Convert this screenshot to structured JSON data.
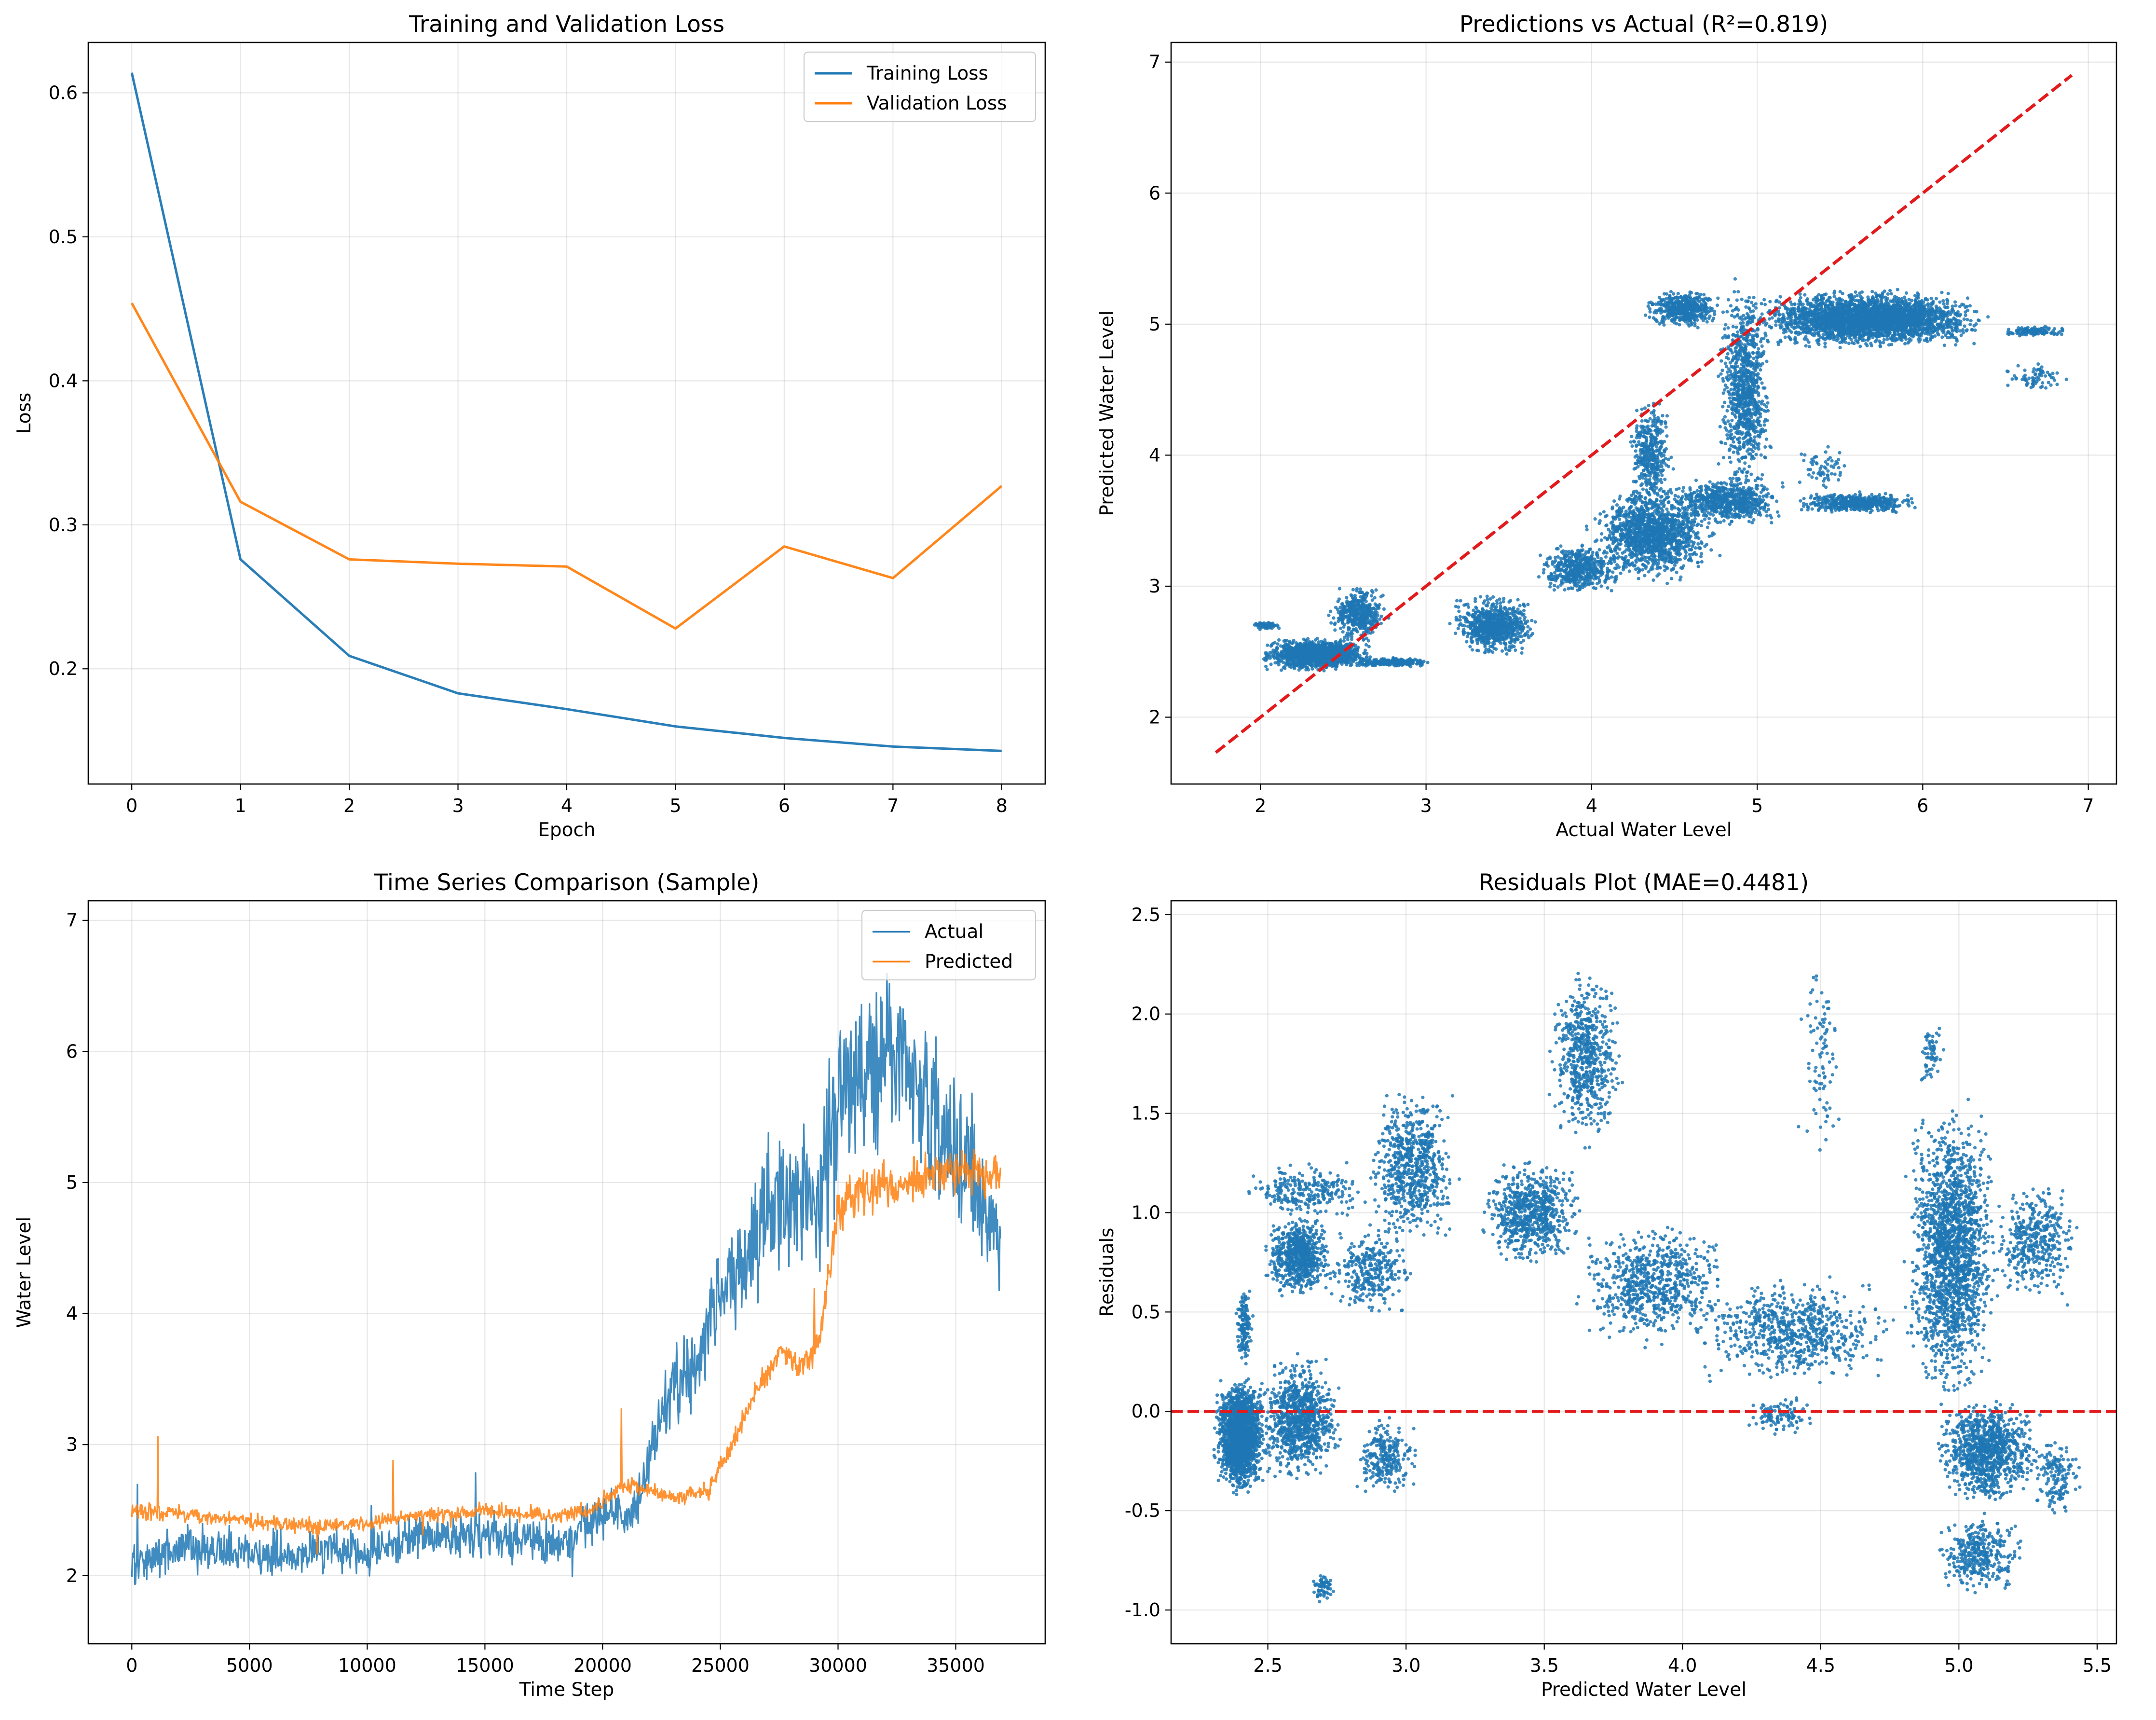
{
  "figure": {
    "background": "#ffffff"
  },
  "chart_data": [
    {
      "id": "loss",
      "type": "line",
      "title": "Training and Validation Loss",
      "xlabel": "Epoch",
      "ylabel": "Loss",
      "xlim": [
        -0.4,
        8.4
      ],
      "ylim": [
        0.12,
        0.635
      ],
      "xticks": [
        0,
        1,
        2,
        3,
        4,
        5,
        6,
        7,
        8
      ],
      "yticks": [
        0.2,
        0.3,
        0.4,
        0.5,
        0.6
      ],
      "grid": true,
      "legend": "upper-right",
      "x": [
        0,
        1,
        2,
        3,
        4,
        5,
        6,
        7,
        8
      ],
      "series": [
        {
          "name": "Training Loss",
          "color": "#1f77b4",
          "values": [
            0.614,
            0.276,
            0.209,
            0.183,
            0.172,
            0.16,
            0.152,
            0.146,
            0.143
          ]
        },
        {
          "name": "Validation Loss",
          "color": "#ff7f0e",
          "values": [
            0.454,
            0.316,
            0.276,
            0.273,
            0.271,
            0.228,
            0.285,
            0.263,
            0.327
          ]
        }
      ]
    },
    {
      "id": "pred_vs_actual",
      "type": "scatter",
      "title": "Predictions vs Actual (R²=0.819)",
      "xlabel": "Actual Water Level",
      "ylabel": "Predicted Water Level",
      "xlim": [
        1.46,
        7.17
      ],
      "ylim": [
        1.49,
        7.15
      ],
      "xticks": [
        2,
        3,
        4,
        5,
        6,
        7
      ],
      "yticks": [
        2,
        3,
        4,
        5,
        6,
        7
      ],
      "grid": true,
      "point_color": "#1f77b4",
      "reference_line": {
        "x": [
          1.73,
          6.9
        ],
        "y": [
          1.73,
          6.9
        ],
        "color": "#e31a1c",
        "style": "dashed"
      },
      "clusters": [
        {
          "x": [
            1.92,
            2.15
          ],
          "y": [
            2.66,
            2.74
          ],
          "count": 60
        },
        {
          "x": [
            1.95,
            2.72
          ],
          "y": [
            2.34,
            2.62
          ],
          "count": 1400
        },
        {
          "x": [
            2.4,
            2.78
          ],
          "y": [
            2.55,
            3.02
          ],
          "count": 450
        },
        {
          "x": [
            2.55,
            3.05
          ],
          "y": [
            2.38,
            2.46
          ],
          "count": 260
        },
        {
          "x": [
            3.12,
            3.7
          ],
          "y": [
            2.45,
            2.95
          ],
          "count": 800
        },
        {
          "x": [
            3.65,
            4.2
          ],
          "y": [
            2.9,
            3.35
          ],
          "count": 500
        },
        {
          "x": [
            3.95,
            4.8
          ],
          "y": [
            3.0,
            3.8
          ],
          "count": 1400
        },
        {
          "x": [
            4.2,
            4.5
          ],
          "y": [
            3.5,
            4.5
          ],
          "count": 400
        },
        {
          "x": [
            4.45,
            5.2
          ],
          "y": [
            3.45,
            3.85
          ],
          "count": 700
        },
        {
          "x": [
            5.2,
            6.0
          ],
          "y": [
            3.55,
            3.72
          ],
          "count": 500
        },
        {
          "x": [
            4.75,
            5.1
          ],
          "y": [
            3.6,
            5.4
          ],
          "count": 900
        },
        {
          "x": [
            4.3,
            4.8
          ],
          "y": [
            4.95,
            5.28
          ],
          "count": 500
        },
        {
          "x": [
            4.9,
            6.45
          ],
          "y": [
            4.8,
            5.28
          ],
          "count": 3000
        },
        {
          "x": [
            6.45,
            6.9
          ],
          "y": [
            4.9,
            4.99
          ],
          "count": 120
        },
        {
          "x": [
            6.45,
            6.9
          ],
          "y": [
            4.46,
            4.72
          ],
          "count": 70
        },
        {
          "x": [
            5.2,
            5.6
          ],
          "y": [
            3.7,
            4.1
          ],
          "count": 60
        }
      ]
    },
    {
      "id": "time_series",
      "type": "line",
      "title": "Time Series Comparison (Sample)",
      "xlabel": "Time Step",
      "ylabel": "Water Level",
      "xlim": [
        -1850,
        38800
      ],
      "ylim": [
        1.48,
        7.15
      ],
      "xticks": [
        0,
        5000,
        10000,
        15000,
        20000,
        25000,
        30000,
        35000
      ],
      "yticks": [
        2,
        3,
        4,
        5,
        6,
        7
      ],
      "grid": true,
      "legend": "upper-right",
      "x_range": [
        0,
        36900
      ],
      "series": [
        {
          "name": "Actual",
          "color": "#1f77b4",
          "x": [
            0,
            2000,
            4000,
            6000,
            8000,
            10000,
            12000,
            13000,
            15000,
            18000,
            19500,
            20500,
            21200,
            22000,
            23000,
            24000,
            25000,
            26000,
            27000,
            28000,
            29000,
            30000,
            31000,
            32000,
            33000,
            34000,
            35000,
            36000,
            36900
          ],
          "values": [
            2.1,
            2.2,
            2.2,
            2.15,
            2.2,
            2.2,
            2.3,
            2.3,
            2.3,
            2.25,
            2.4,
            2.5,
            2.4,
            2.9,
            3.5,
            3.5,
            4.2,
            4.4,
            4.8,
            4.9,
            4.8,
            5.6,
            5.9,
            6.0,
            5.8,
            5.6,
            5.3,
            4.9,
            4.5
          ],
          "noise": 0.12
        },
        {
          "name": "Predicted",
          "color": "#ff7f0e",
          "x": [
            0,
            3000,
            6000,
            8000,
            10000,
            12000,
            15000,
            18000,
            19500,
            21000,
            23000,
            24500,
            25500,
            26500,
            27500,
            28500,
            29200,
            30000,
            31000,
            33000,
            35000,
            36900
          ],
          "values": [
            2.5,
            2.45,
            2.4,
            2.38,
            2.4,
            2.45,
            2.5,
            2.45,
            2.5,
            2.7,
            2.6,
            2.65,
            3.0,
            3.4,
            3.7,
            3.6,
            3.8,
            4.8,
            4.95,
            5.0,
            5.1,
            5.05
          ],
          "noise": 0.04
        }
      ]
    },
    {
      "id": "residuals",
      "type": "scatter",
      "title": "Residuals Plot (MAE=0.4481)",
      "xlabel": "Predicted Water Level",
      "ylabel": "Residuals",
      "xlim": [
        2.15,
        5.57
      ],
      "ylim": [
        -1.17,
        2.57
      ],
      "xticks": [
        2.5,
        3.0,
        3.5,
        4.0,
        4.5,
        5.0,
        5.5
      ],
      "yticks": [
        -1.0,
        -0.5,
        0.0,
        0.5,
        1.0,
        1.5,
        2.0,
        2.5
      ],
      "grid": true,
      "point_color": "#1f77b4",
      "reference_line": {
        "y": 0,
        "color": "#e31a1c",
        "style": "dashed"
      },
      "clusters": [
        {
          "x": [
            2.3,
            2.5
          ],
          "y": [
            -0.45,
            0.2
          ],
          "count": 1800
        },
        {
          "x": [
            2.38,
            2.45
          ],
          "y": [
            0.2,
            0.65
          ],
          "count": 150
        },
        {
          "x": [
            2.45,
            2.78
          ],
          "y": [
            -0.4,
            0.3
          ],
          "count": 900
        },
        {
          "x": [
            2.48,
            2.75
          ],
          "y": [
            0.55,
            1.0
          ],
          "count": 700
        },
        {
          "x": [
            2.38,
            2.9
          ],
          "y": [
            0.95,
            1.27
          ],
          "count": 250
        },
        {
          "x": [
            2.7,
            3.05
          ],
          "y": [
            0.45,
            0.95
          ],
          "count": 300
        },
        {
          "x": [
            2.8,
            3.05
          ],
          "y": [
            -0.45,
            0.0
          ],
          "count": 250
        },
        {
          "x": [
            2.65,
            2.75
          ],
          "y": [
            -0.98,
            -0.8
          ],
          "count": 60
        },
        {
          "x": [
            2.85,
            3.2
          ],
          "y": [
            0.8,
            1.65
          ],
          "count": 700
        },
        {
          "x": [
            3.25,
            3.65
          ],
          "y": [
            0.7,
            1.3
          ],
          "count": 700
        },
        {
          "x": [
            3.5,
            3.8
          ],
          "y": [
            1.3,
            2.25
          ],
          "count": 600
        },
        {
          "x": [
            3.6,
            4.2
          ],
          "y": [
            0.3,
            1.0
          ],
          "count": 700
        },
        {
          "x": [
            4.0,
            4.8
          ],
          "y": [
            0.1,
            0.7
          ],
          "count": 700
        },
        {
          "x": [
            4.2,
            4.5
          ],
          "y": [
            -0.15,
            0.1
          ],
          "count": 100
        },
        {
          "x": [
            4.4,
            4.6
          ],
          "y": [
            1.2,
            2.4
          ],
          "count": 90
        },
        {
          "x": [
            4.8,
            5.15
          ],
          "y": [
            0.0,
            1.6
          ],
          "count": 1800
        },
        {
          "x": [
            4.9,
            5.3
          ],
          "y": [
            -0.5,
            0.1
          ],
          "count": 1000
        },
        {
          "x": [
            4.9,
            5.25
          ],
          "y": [
            -0.95,
            -0.5
          ],
          "count": 350
        },
        {
          "x": [
            5.1,
            5.45
          ],
          "y": [
            0.5,
            1.2
          ],
          "count": 400
        },
        {
          "x": [
            5.25,
            5.45
          ],
          "y": [
            -0.55,
            -0.1
          ],
          "count": 150
        },
        {
          "x": [
            4.85,
            4.95
          ],
          "y": [
            1.6,
            2.0
          ],
          "count": 60
        }
      ]
    }
  ]
}
